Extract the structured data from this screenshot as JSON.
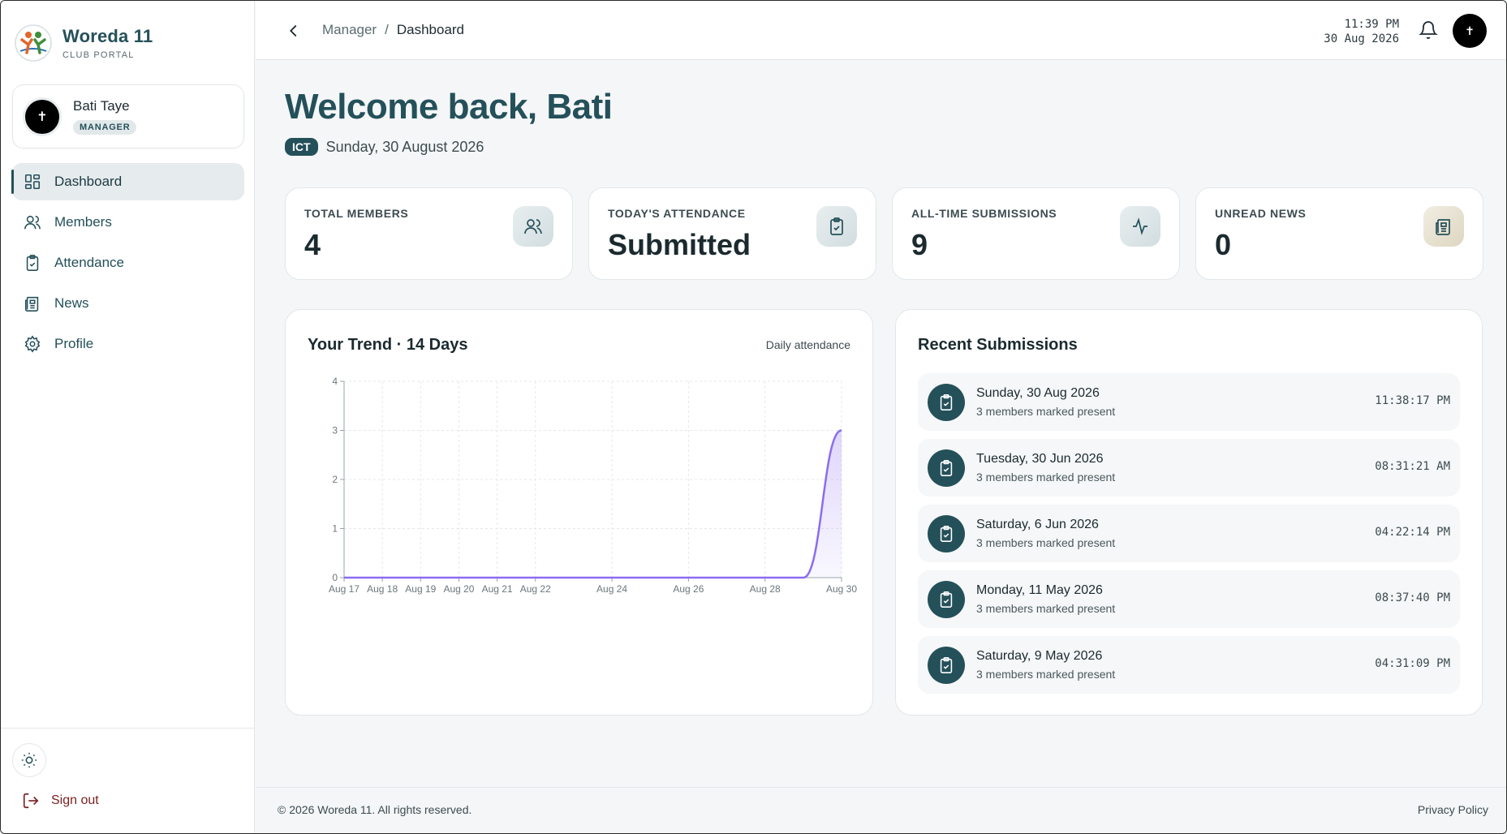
{
  "brand": {
    "title": "Woreda 11",
    "subtitle": "CLUB PORTAL"
  },
  "user": {
    "name": "Bati Taye",
    "role": "MANAGER",
    "avatar_glyph": "✝"
  },
  "nav": {
    "items": [
      {
        "label": "Dashboard",
        "icon": "grid-icon",
        "active": true
      },
      {
        "label": "Members",
        "icon": "users-icon"
      },
      {
        "label": "Attendance",
        "icon": "clipboard-check-icon"
      },
      {
        "label": "News",
        "icon": "newspaper-icon"
      },
      {
        "label": "Profile",
        "icon": "gear-icon"
      }
    ]
  },
  "sidebar_bottom": {
    "signout_label": "Sign out"
  },
  "header": {
    "breadcrumb_parent": "Manager",
    "breadcrumb_separator": "/",
    "breadcrumb_current": "Dashboard",
    "clock_time": "11:39 PM",
    "clock_date": "30 Aug 2026"
  },
  "welcome": {
    "title": "Welcome back, Bati",
    "timezone": "ICT",
    "date": "Sunday, 30 August 2026"
  },
  "stats": [
    {
      "label": "TOTAL MEMBERS",
      "value": "4",
      "icon": "users-icon"
    },
    {
      "label": "TODAY'S ATTENDANCE",
      "value": "Submitted",
      "icon": "clipboard-check-icon"
    },
    {
      "label": "ALL-TIME SUBMISSIONS",
      "value": "9",
      "icon": "activity-icon"
    },
    {
      "label": "UNREAD NEWS",
      "value": "0",
      "icon": "newspaper-icon"
    }
  ],
  "trend": {
    "title": "Your Trend · 14 Days",
    "subtitle": "Daily attendance"
  },
  "chart_data": {
    "type": "area",
    "title": "Your Trend · 14 Days",
    "subtitle": "Daily attendance",
    "x": [
      "Aug 17",
      "Aug 18",
      "Aug 19",
      "Aug 20",
      "Aug 21",
      "Aug 22",
      "Aug 23",
      "Aug 24",
      "Aug 25",
      "Aug 26",
      "Aug 27",
      "Aug 28",
      "Aug 29",
      "Aug 30"
    ],
    "x_tick_labels": [
      "Aug 17",
      "Aug 18",
      "Aug 19",
      "Aug 20",
      "Aug 21",
      "Aug 22",
      "Aug 24",
      "Aug 26",
      "Aug 28",
      "Aug 30"
    ],
    "values": [
      0,
      0,
      0,
      0,
      0,
      0,
      0,
      0,
      0,
      0,
      0,
      0,
      0,
      3
    ],
    "ylim": [
      0,
      4
    ],
    "y_ticks": [
      0,
      1,
      2,
      3,
      4
    ],
    "grid": true,
    "color": "#8b6cf0"
  },
  "recent": {
    "title": "Recent Submissions",
    "items": [
      {
        "date": "Sunday, 30 Aug 2026",
        "note": "3 members marked present",
        "time": "11:38:17 PM"
      },
      {
        "date": "Tuesday, 30 Jun 2026",
        "note": "3 members marked present",
        "time": "08:31:21 AM"
      },
      {
        "date": "Saturday, 6 Jun 2026",
        "note": "3 members marked present",
        "time": "04:22:14 PM"
      },
      {
        "date": "Monday, 11 May 2026",
        "note": "3 members marked present",
        "time": "08:37:40 PM"
      },
      {
        "date": "Saturday, 9 May 2026",
        "note": "3 members marked present",
        "time": "04:31:09 PM"
      }
    ]
  },
  "footer": {
    "copyright": "© 2026 Woreda 11. All rights reserved.",
    "privacy": "Privacy Policy"
  }
}
